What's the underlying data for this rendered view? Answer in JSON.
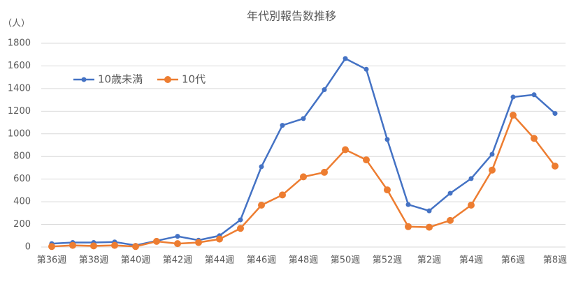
{
  "chart_data": {
    "type": "line",
    "title": "年代別報告数推移",
    "y_label": "（人）",
    "categories": [
      "第36週",
      null,
      "第38週",
      null,
      "第40週",
      null,
      "第42週",
      null,
      "第44週",
      null,
      "第46週",
      null,
      "第48週",
      null,
      "第50週",
      null,
      "第52週",
      null,
      "第2週",
      null,
      "第4週",
      null,
      "第6週",
      null,
      "第8週"
    ],
    "series": [
      {
        "name": "10歳未満",
        "color": "#4472c4",
        "values": [
          30,
          40,
          40,
          45,
          15,
          55,
          95,
          60,
          100,
          240,
          710,
          1075,
          1135,
          1390,
          1665,
          1570,
          950,
          375,
          320,
          475,
          605,
          820,
          1325,
          1345,
          1180
        ]
      },
      {
        "name": "10代",
        "color": "#ed7d31",
        "values": [
          5,
          15,
          10,
          15,
          5,
          50,
          30,
          40,
          70,
          165,
          370,
          460,
          620,
          660,
          860,
          770,
          505,
          180,
          175,
          235,
          370,
          680,
          1165,
          960,
          715
        ]
      }
    ],
    "ylim": [
      0,
      1800
    ],
    "yticks": [
      0,
      200,
      400,
      600,
      800,
      1000,
      1200,
      1400,
      1600,
      1800
    ],
    "grid": true,
    "legend": "upper left"
  }
}
